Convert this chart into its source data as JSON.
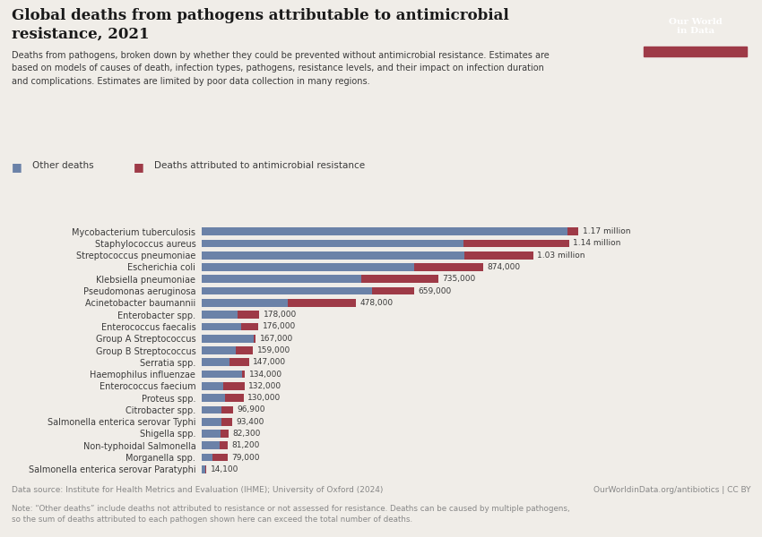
{
  "title_line1": "Global deaths from pathogens attributable to antimicrobial",
  "title_line2": "resistance, 2021",
  "subtitle": "Deaths from pathogens, broken down by whether they could be prevented without antimicrobial resistance. Estimates are\nbased on models of causes of death, infection types, pathogens, resistance levels, and their impact on infection duration\nand complications. Estimates are limited by poor data collection in many regions.",
  "legend_other": "Other deaths",
  "legend_amr": "Deaths attributed to antimicrobial resistance",
  "datasource": "Data source: Institute for Health Metrics and Evaluation (IHME); University of Oxford (2024)",
  "url": "OurWorldinData.org/antibiotics | CC BY",
  "note": "Note: “Other deaths” include deaths not attributed to resistance or not assessed for resistance. Deaths can be caused by multiple pathogens,\nso the sum of deaths attributed to each pathogen shown here can exceed the total number of deaths.",
  "background_color": "#f0ede8",
  "bar_color_other": "#6b82a8",
  "bar_color_amr": "#9e3a47",
  "title_color": "#1a1a1a",
  "text_color": "#3a3a3a",
  "note_color": "#888888",
  "logo_bg": "#1a3a5c",
  "logo_red": "#9e3a47",
  "pathogens": [
    "Mycobacterium tuberculosis",
    "Staphylococcus aureus",
    "Streptococcus pneumoniae",
    "Escherichia coli",
    "Klebsiella pneumoniae",
    "Pseudomonas aeruginosa",
    "Acinetobacter baumannii",
    "Enterobacter spp.",
    "Enterococcus faecalis",
    "Group A Streptococcus",
    "Group B Streptococcus",
    "Serratia spp.",
    "Haemophilus influenzae",
    "Enterococcus faecium",
    "Proteus spp.",
    "Citrobacter spp.",
    "Salmonella enterica serovar Typhi",
    "Shigella spp.",
    "Non-typhoidal Salmonella",
    "Morganella spp.",
    "Salmonella enterica serovar Paratyphi"
  ],
  "total_deaths": [
    1170000,
    1140000,
    1030000,
    874000,
    735000,
    659000,
    478000,
    178000,
    176000,
    167000,
    159000,
    147000,
    134000,
    132000,
    130000,
    96900,
    93400,
    82300,
    81200,
    79000,
    14100
  ],
  "amr_deaths": [
    36000,
    327000,
    216000,
    216000,
    241000,
    130000,
    212000,
    68000,
    53000,
    5000,
    55000,
    62000,
    9000,
    67000,
    57000,
    35000,
    32000,
    25000,
    26000,
    45000,
    4000
  ],
  "labels": [
    "1.17 million",
    "1.14 million",
    "1.03 million",
    "874,000",
    "735,000",
    "659,000",
    "478,000",
    "178,000",
    "176,000",
    "167,000",
    "159,000",
    "147,000",
    "134,000",
    "132,000",
    "130,000",
    "96,900",
    "93,400",
    "82,300",
    "81,200",
    "79,000",
    "14,100"
  ]
}
